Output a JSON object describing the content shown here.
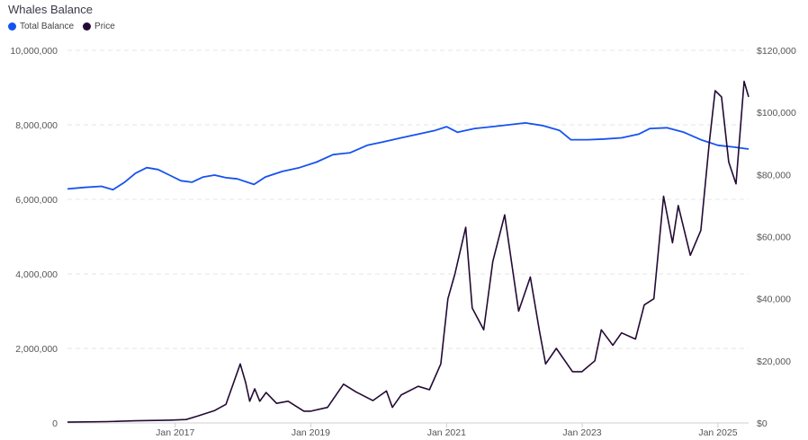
{
  "title": "Whales Balance",
  "legend": [
    {
      "label": "Total Balance",
      "color": "#1652f0"
    },
    {
      "label": "Price",
      "color": "#230a34"
    }
  ],
  "chart_data": {
    "type": "line",
    "title": "Whales Balance",
    "x_axis": {
      "type": "date",
      "range": [
        "2015-06-01",
        "2025-06-15"
      ],
      "tick_labels": [
        "Jan 2017",
        "Jan 2019",
        "Jan 2021",
        "Jan 2023",
        "Jan 2025"
      ]
    },
    "y_left": {
      "range": [
        0,
        10000000
      ],
      "ticks": [
        0,
        2000000,
        4000000,
        6000000,
        8000000,
        10000000
      ],
      "tick_labels": [
        "0",
        "2,000,000",
        "4,000,000",
        "6,000,000",
        "8,000,000",
        "10,000,000"
      ]
    },
    "y_right": {
      "range": [
        0,
        120000
      ],
      "ticks": [
        0,
        20000,
        40000,
        60000,
        80000,
        100000,
        120000
      ],
      "tick_labels": [
        "$0",
        "$20,000",
        "$40,000",
        "$60,000",
        "$80,000",
        "$100,000",
        "$120,000"
      ]
    },
    "grid": true,
    "legend_position": "top-left",
    "series": [
      {
        "name": "Total Balance",
        "axis": "left",
        "color": "#1652f0",
        "points": [
          [
            "2015-06-01",
            6280000
          ],
          [
            "2015-09-01",
            6320000
          ],
          [
            "2015-12-01",
            6350000
          ],
          [
            "2016-02-01",
            6260000
          ],
          [
            "2016-04-01",
            6450000
          ],
          [
            "2016-06-01",
            6700000
          ],
          [
            "2016-08-01",
            6850000
          ],
          [
            "2016-10-01",
            6800000
          ],
          [
            "2016-12-01",
            6650000
          ],
          [
            "2017-02-01",
            6500000
          ],
          [
            "2017-04-01",
            6460000
          ],
          [
            "2017-06-01",
            6600000
          ],
          [
            "2017-08-01",
            6650000
          ],
          [
            "2017-10-01",
            6580000
          ],
          [
            "2017-12-01",
            6550000
          ],
          [
            "2018-03-01",
            6400000
          ],
          [
            "2018-05-01",
            6600000
          ],
          [
            "2018-08-01",
            6750000
          ],
          [
            "2018-11-01",
            6850000
          ],
          [
            "2019-02-01",
            7000000
          ],
          [
            "2019-05-01",
            7200000
          ],
          [
            "2019-08-01",
            7250000
          ],
          [
            "2019-11-01",
            7450000
          ],
          [
            "2020-02-01",
            7550000
          ],
          [
            "2020-05-01",
            7650000
          ],
          [
            "2020-08-01",
            7750000
          ],
          [
            "2020-11-01",
            7850000
          ],
          [
            "2021-01-01",
            7950000
          ],
          [
            "2021-03-01",
            7800000
          ],
          [
            "2021-06-01",
            7900000
          ],
          [
            "2021-09-01",
            7950000
          ],
          [
            "2021-12-01",
            8000000
          ],
          [
            "2022-03-01",
            8050000
          ],
          [
            "2022-06-01",
            7980000
          ],
          [
            "2022-09-01",
            7850000
          ],
          [
            "2022-11-01",
            7600000
          ],
          [
            "2023-02-01",
            7600000
          ],
          [
            "2023-05-01",
            7620000
          ],
          [
            "2023-08-01",
            7650000
          ],
          [
            "2023-11-01",
            7750000
          ],
          [
            "2024-01-01",
            7900000
          ],
          [
            "2024-04-01",
            7920000
          ],
          [
            "2024-07-01",
            7800000
          ],
          [
            "2024-10-01",
            7600000
          ],
          [
            "2025-01-01",
            7450000
          ],
          [
            "2025-04-01",
            7400000
          ],
          [
            "2025-06-15",
            7350000
          ]
        ]
      },
      {
        "name": "Price",
        "axis": "right",
        "color": "#230a34",
        "points": [
          [
            "2015-06-01",
            250
          ],
          [
            "2016-01-01",
            430
          ],
          [
            "2016-06-01",
            680
          ],
          [
            "2016-12-01",
            900
          ],
          [
            "2017-03-01",
            1100
          ],
          [
            "2017-05-01",
            2200
          ],
          [
            "2017-08-01",
            4000
          ],
          [
            "2017-10-01",
            6000
          ],
          [
            "2017-12-17",
            19000
          ],
          [
            "2018-01-15",
            13000
          ],
          [
            "2018-02-06",
            7000
          ],
          [
            "2018-03-05",
            11000
          ],
          [
            "2018-04-01",
            7000
          ],
          [
            "2018-05-05",
            9800
          ],
          [
            "2018-07-01",
            6300
          ],
          [
            "2018-09-01",
            7000
          ],
          [
            "2018-11-25",
            3800
          ],
          [
            "2019-01-01",
            3800
          ],
          [
            "2019-04-01",
            5000
          ],
          [
            "2019-06-26",
            12500
          ],
          [
            "2019-09-01",
            10000
          ],
          [
            "2019-12-01",
            7200
          ],
          [
            "2020-02-12",
            10300
          ],
          [
            "2020-03-15",
            5000
          ],
          [
            "2020-05-01",
            9000
          ],
          [
            "2020-08-01",
            11800
          ],
          [
            "2020-10-01",
            10700
          ],
          [
            "2020-12-01",
            19000
          ],
          [
            "2021-01-08",
            40000
          ],
          [
            "2021-02-15",
            48000
          ],
          [
            "2021-04-14",
            63000
          ],
          [
            "2021-05-19",
            37000
          ],
          [
            "2021-07-20",
            30000
          ],
          [
            "2021-09-07",
            52000
          ],
          [
            "2021-11-10",
            67000
          ],
          [
            "2022-01-24",
            36000
          ],
          [
            "2022-03-28",
            47000
          ],
          [
            "2022-05-15",
            30000
          ],
          [
            "2022-06-18",
            19000
          ],
          [
            "2022-08-15",
            24000
          ],
          [
            "2022-11-10",
            16500
          ],
          [
            "2022-12-31",
            16500
          ],
          [
            "2023-03-10",
            20000
          ],
          [
            "2023-04-14",
            30000
          ],
          [
            "2023-06-15",
            25000
          ],
          [
            "2023-08-01",
            29000
          ],
          [
            "2023-10-15",
            27000
          ],
          [
            "2023-12-01",
            38000
          ],
          [
            "2024-01-22",
            40000
          ],
          [
            "2024-03-14",
            73000
          ],
          [
            "2024-05-01",
            58000
          ],
          [
            "2024-06-01",
            70000
          ],
          [
            "2024-08-05",
            54000
          ],
          [
            "2024-10-01",
            62000
          ],
          [
            "2024-11-15",
            90000
          ],
          [
            "2024-12-17",
            107000
          ],
          [
            "2025-01-20",
            105000
          ],
          [
            "2025-02-28",
            84000
          ],
          [
            "2025-04-08",
            77000
          ],
          [
            "2025-05-22",
            110000
          ],
          [
            "2025-06-15",
            105000
          ]
        ]
      }
    ]
  }
}
